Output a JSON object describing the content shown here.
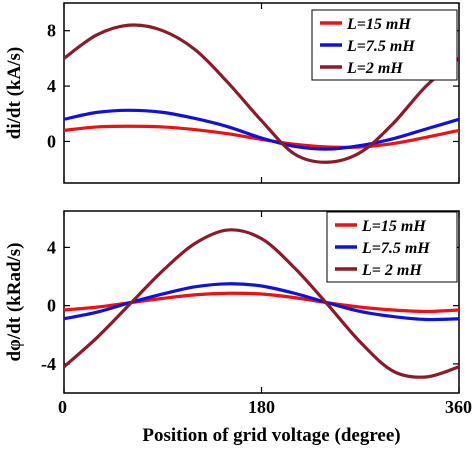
{
  "chart_data": [
    {
      "type": "line",
      "ylabel": "di/dt (kA/s)",
      "xlim": [
        0,
        360
      ],
      "ylim": [
        -3,
        10
      ],
      "yticks": [
        0,
        4,
        8
      ],
      "ytick_labels": [
        "0",
        "4",
        "8"
      ],
      "x": [
        0,
        30,
        60,
        90,
        120,
        150,
        180,
        210,
        240,
        270,
        300,
        330,
        360
      ],
      "legend": {
        "placement": "top-right"
      },
      "series": [
        {
          "name": "L=15 mH",
          "color": "#ee1111",
          "values": [
            0.8,
            1.05,
            1.1,
            1.05,
            0.85,
            0.55,
            0.15,
            -0.2,
            -0.4,
            -0.4,
            -0.15,
            0.3,
            0.8
          ]
        },
        {
          "name": "L=7.5 mH",
          "color": "#1111dd",
          "values": [
            1.6,
            2.1,
            2.25,
            2.1,
            1.65,
            1.05,
            0.25,
            -0.35,
            -0.55,
            -0.3,
            0.2,
            0.9,
            1.6
          ]
        },
        {
          "name": "L=2 mH",
          "color": "#8b1a2b",
          "values": [
            6.0,
            7.7,
            8.4,
            8.0,
            6.6,
            4.2,
            1.5,
            -0.9,
            -1.5,
            -0.8,
            1.3,
            4.0,
            6.0
          ]
        }
      ]
    },
    {
      "type": "line",
      "ylabel": "dφ/dt (kRad/s)",
      "xlabel": "Position of grid voltage (degree)",
      "xlim": [
        0,
        360
      ],
      "ylim": [
        -6,
        6.5
      ],
      "xticks": [
        0,
        180,
        360
      ],
      "xtick_labels": [
        "0",
        "180",
        "360"
      ],
      "yticks": [
        -4,
        0,
        4
      ],
      "ytick_labels": [
        "-4",
        "0",
        "4"
      ],
      "x": [
        0,
        30,
        60,
        90,
        120,
        150,
        180,
        210,
        240,
        270,
        300,
        330,
        360
      ],
      "legend": {
        "placement": "top-right"
      },
      "series": [
        {
          "name": "L=15 mH",
          "color": "#ee1111",
          "values": [
            -0.3,
            -0.1,
            0.2,
            0.5,
            0.75,
            0.85,
            0.8,
            0.55,
            0.2,
            -0.1,
            -0.3,
            -0.4,
            -0.3
          ]
        },
        {
          "name": "L=7.5 mH",
          "color": "#1111dd",
          "values": [
            -0.9,
            -0.45,
            0.2,
            0.8,
            1.3,
            1.5,
            1.35,
            0.85,
            0.2,
            -0.4,
            -0.75,
            -0.95,
            -0.9
          ]
        },
        {
          "name": "L= 2 mH",
          "color": "#8b1a2b",
          "values": [
            -4.2,
            -2.2,
            0.1,
            2.4,
            4.3,
            5.2,
            4.6,
            2.6,
            0.1,
            -2.5,
            -4.5,
            -4.9,
            -4.2
          ]
        }
      ]
    }
  ]
}
